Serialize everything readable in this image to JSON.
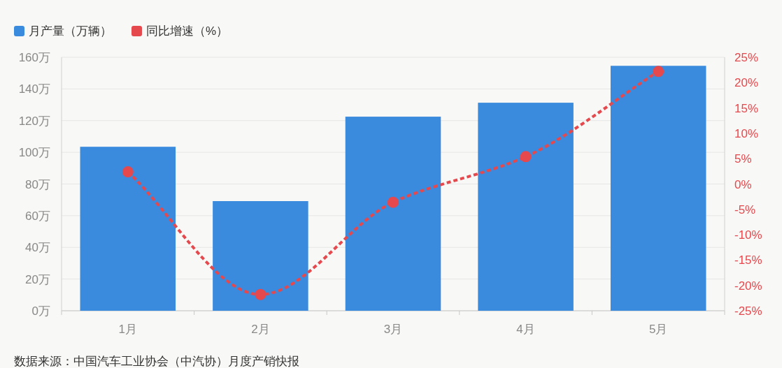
{
  "chart_data": {
    "type": "bar",
    "categories": [
      "1月",
      "2月",
      "3月",
      "4月",
      "5月"
    ],
    "series": [
      {
        "name": "月产量（万辆）",
        "color": "#3a8ade",
        "values": [
          103.5,
          69.2,
          122.5,
          131.3,
          154.6
        ]
      },
      {
        "name": "同比增速（%）",
        "type": "line",
        "axis": "y2",
        "color": "#e5484d",
        "values": [
          2.4,
          -21.8,
          -3.6,
          5.4,
          22.2
        ]
      }
    ],
    "ylim": [
      0,
      160
    ],
    "yticks": [
      {
        "value": 0,
        "label": "0万"
      },
      {
        "value": 20,
        "label": "20万"
      },
      {
        "value": 40,
        "label": "40万"
      },
      {
        "value": 60,
        "label": "60万"
      },
      {
        "value": 80,
        "label": "80万"
      },
      {
        "value": 100,
        "label": "100万"
      },
      {
        "value": 120,
        "label": "120万"
      },
      {
        "value": 140,
        "label": "140万"
      },
      {
        "value": 160,
        "label": "160万"
      }
    ],
    "y2lim": [
      -25,
      25
    ],
    "y2ticks": [
      {
        "value": -25,
        "label": "-25%"
      },
      {
        "value": -20,
        "label": "-20%"
      },
      {
        "value": -15,
        "label": "-15%"
      },
      {
        "value": -10,
        "label": "-10%"
      },
      {
        "value": -5,
        "label": "-5%"
      },
      {
        "value": 0,
        "label": "0%"
      },
      {
        "value": 5,
        "label": "5%"
      },
      {
        "value": 10,
        "label": "10%"
      },
      {
        "value": 15,
        "label": "15%"
      },
      {
        "value": 20,
        "label": "20%"
      },
      {
        "value": 25,
        "label": "25%"
      }
    ],
    "grid": "y",
    "legend": "top left",
    "marker": "circle",
    "line_style": "dashed",
    "annotations": [
      "数据来源：中国汽车工业协会（中汽协）月度产销快报"
    ]
  }
}
